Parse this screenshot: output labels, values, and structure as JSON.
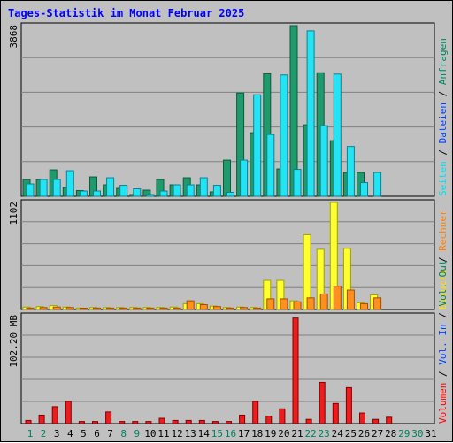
{
  "chart_data": [
    {
      "panel": "top",
      "type": "bar",
      "title": "Tages-Statistik im Monat Februar 2025",
      "ylabel": "3868",
      "ylim": [
        0,
        3868
      ],
      "legend": [
        {
          "text": "Seiten",
          "color": "#00e0f0"
        },
        {
          "text": "Dateien",
          "color": "#0040ff"
        },
        {
          "text": "Anfragen",
          "color": "#008060"
        }
      ],
      "series": [
        {
          "name": "Anfragen",
          "color": "#1f9a6c",
          "dark": "#0f5a3c",
          "values": [
            380,
            380,
            600,
            200,
            130,
            440,
            260,
            180,
            40,
            140,
            380,
            260,
            420,
            260,
            100,
            820,
            2340,
            1440,
            2780,
            620,
            3868,
            1620,
            2800,
            1260,
            540,
            540,
            0,
            0
          ]
        },
        {
          "name": "Seiten",
          "color": "#22e4f4",
          "dark": "#108090",
          "values": [
            280,
            380,
            380,
            580,
            120,
            120,
            420,
            250,
            170,
            40,
            120,
            260,
            260,
            420,
            250,
            90,
            820,
            2300,
            1400,
            2750,
            610,
            3750,
            1600,
            2770,
            1130,
            310,
            540,
            0
          ]
        }
      ]
    },
    {
      "panel": "middle",
      "type": "bar",
      "ylabel": "1102",
      "ylim": [
        0,
        1102
      ],
      "legend": [
        {
          "text": "Besuche",
          "color": "#ffe000"
        },
        {
          "text": "Rechner",
          "color": "#ff8000"
        }
      ],
      "series": [
        {
          "name": "Besuche",
          "color": "#ffff30",
          "dark": "#a0a000",
          "values": [
            25,
            30,
            40,
            25,
            15,
            20,
            20,
            20,
            20,
            20,
            20,
            25,
            60,
            60,
            35,
            20,
            25,
            20,
            300,
            300,
            90,
            770,
            620,
            1102,
            630,
            70,
            150,
            0
          ]
        },
        {
          "name": "Rechner",
          "color": "#ff9020",
          "dark": "#a05000",
          "values": [
            15,
            20,
            25,
            20,
            10,
            15,
            15,
            15,
            15,
            15,
            15,
            15,
            90,
            50,
            30,
            15,
            20,
            15,
            110,
            110,
            80,
            120,
            160,
            240,
            200,
            60,
            120,
            0
          ]
        }
      ]
    },
    {
      "panel": "bottom",
      "type": "bar",
      "ylabel": "102.20 MB",
      "ylim": [
        0,
        102.2
      ],
      "legend": [
        {
          "text": "Volumen",
          "color": "#ff0000"
        },
        {
          "text": "Vol. In",
          "color": "#0040ff"
        },
        {
          "text": "Vol. Out",
          "color": "#008060"
        }
      ],
      "series": [
        {
          "name": "Volumen",
          "color": "#ee1c1c",
          "dark": "#800000",
          "values": [
            3,
            8,
            16,
            21,
            2,
            2,
            11,
            2,
            2,
            2,
            5,
            3,
            3,
            3,
            2,
            2,
            8,
            21,
            7,
            14,
            100,
            4,
            39,
            19,
            34,
            10,
            4,
            6,
            0,
            0,
            0
          ]
        }
      ]
    }
  ],
  "legend_separator": "/",
  "xaxis": {
    "labels": [
      "1",
      "2",
      "3",
      "4",
      "5",
      "6",
      "7",
      "8",
      "9",
      "10",
      "11",
      "12",
      "13",
      "14",
      "15",
      "16",
      "17",
      "18",
      "19",
      "20",
      "21",
      "22",
      "23",
      "24",
      "25",
      "26",
      "27",
      "28",
      "29",
      "30",
      "31"
    ],
    "colors": [
      "#008060",
      "#008060",
      "#000000",
      "#000000",
      "#000000",
      "#000000",
      "#000000",
      "#008060",
      "#008060",
      "#000000",
      "#000000",
      "#000000",
      "#000000",
      "#000000",
      "#008060",
      "#008060",
      "#000000",
      "#000000",
      "#000000",
      "#000000",
      "#000000",
      "#008060",
      "#008060",
      "#000000",
      "#000000",
      "#000000",
      "#000000",
      "#000000",
      "#008060",
      "#008060",
      "#000000"
    ]
  },
  "colors": {
    "background": "#c0c0c0",
    "title": "#0000ff",
    "grid": "#808080",
    "separator": "#000000"
  }
}
